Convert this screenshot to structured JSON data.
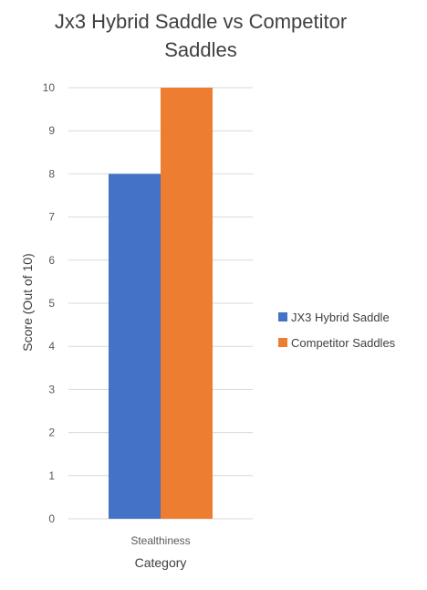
{
  "chart_data": {
    "type": "bar",
    "title": "Jx3 Hybrid Saddle vs Competitor Saddles",
    "xlabel": "Category",
    "ylabel": "Score (Out of 10)",
    "categories": [
      "Stealthiness"
    ],
    "series": [
      {
        "name": "JX3 Hybrid Saddle",
        "values": [
          8
        ],
        "color": "#4472C4"
      },
      {
        "name": "Competitor Saddles",
        "values": [
          10
        ],
        "color": "#ED7D31"
      }
    ],
    "ylim": [
      0,
      10
    ],
    "yticks": [
      "0",
      "1",
      "2",
      "3",
      "4",
      "5",
      "6",
      "7",
      "8",
      "9",
      "10"
    ],
    "grid": true,
    "legend_position": "right"
  }
}
